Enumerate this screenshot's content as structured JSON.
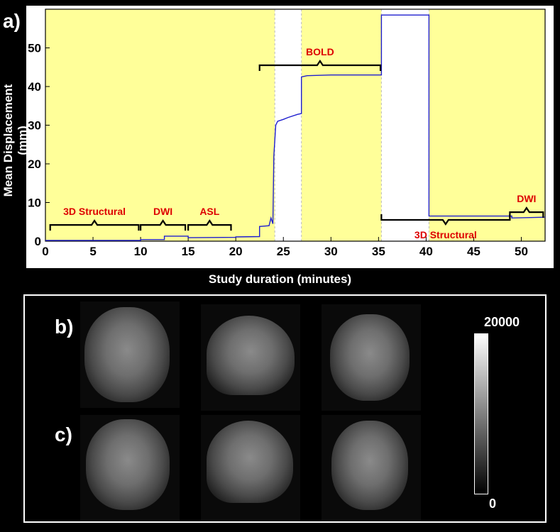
{
  "panels": {
    "a": "a)",
    "b": "b)",
    "c": "c)"
  },
  "chart_data": {
    "type": "line",
    "xlabel": "Study duration (minutes)",
    "ylabel": "Mean Displacement (mm)",
    "xlim": [
      0,
      52.5
    ],
    "ylim": [
      0,
      60
    ],
    "xticks": [
      0,
      5,
      10,
      15,
      20,
      25,
      30,
      35,
      40,
      45,
      50
    ],
    "yticks": [
      0,
      10,
      20,
      30,
      40,
      50
    ],
    "grid": false,
    "background_color": "#ffff99",
    "line_color": "#1f1fcf",
    "annotation_color": "#dd0000",
    "gaps": [
      [
        24.1,
        26.9
      ],
      [
        35.3,
        40.3
      ]
    ],
    "series": [
      {
        "x": [
          0,
          10,
          10,
          12.5,
          12.5,
          15,
          15,
          20,
          20,
          22.5,
          22.5,
          23.5,
          23.7,
          23.9,
          24.0,
          24.2,
          24.4,
          25,
          25.5,
          26.5,
          26.9,
          26.9,
          27.5,
          30,
          35.3,
          35.3,
          40.3,
          40.3,
          49,
          49,
          52.5
        ],
        "y": [
          0.2,
          0.2,
          0.4,
          0.4,
          1.3,
          1.3,
          0.9,
          1.0,
          1.1,
          1.2,
          3.8,
          4.0,
          6.0,
          4.5,
          22,
          30,
          31,
          31.5,
          32,
          32.8,
          33,
          42.5,
          42.8,
          43,
          43,
          58.5,
          58.5,
          6.5,
          6.5,
          6.0,
          6.2
        ]
      }
    ],
    "annotations": [
      {
        "label": "3D Structural",
        "x_start": 0.5,
        "x_end": 9.8,
        "y": 4.2,
        "side": "above"
      },
      {
        "label": "DWI",
        "x_start": 10,
        "x_end": 14.7,
        "y": 4.2,
        "side": "above"
      },
      {
        "label": "ASL",
        "x_start": 15,
        "x_end": 19.5,
        "y": 4.2,
        "side": "above"
      },
      {
        "label": "BOLD",
        "x_start": 22.5,
        "x_end": 35.2,
        "y": 45.5,
        "side": "above"
      },
      {
        "label": "3D Structural",
        "x_start": 35.3,
        "x_end": 48.8,
        "y": 5.5,
        "side": "below"
      },
      {
        "label": "DWI",
        "x_start": 48.8,
        "x_end": 52.3,
        "y": 7.5,
        "side": "above"
      }
    ]
  },
  "colorbar": {
    "max": "20000",
    "min": "0"
  }
}
